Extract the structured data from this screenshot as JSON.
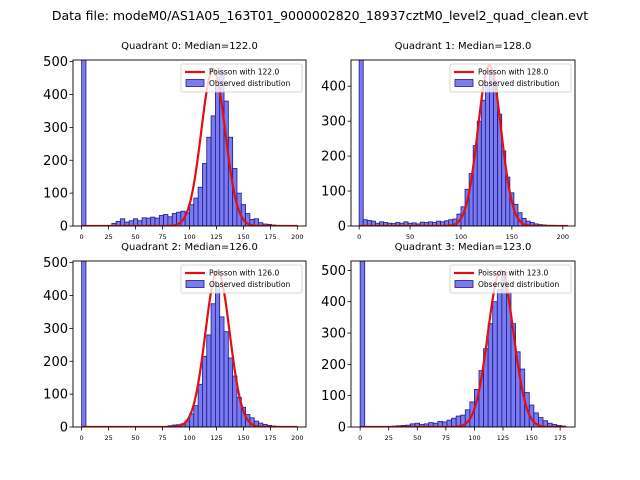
{
  "figure": {
    "suptitle": "Data file: modeM0/AS1A05_163T01_9000002820_18937cztM0_level2_quad_clean.evt"
  },
  "colors": {
    "bars_fill": "#7b7bef",
    "bars_edge": "#1a1a8c",
    "poisson_line": "#e01010"
  },
  "chart_data": [
    {
      "type": "bar",
      "title": "Quadrant 0: Median=122.0",
      "median": 122.0,
      "legend": [
        "Poisson with 122.0",
        "Observed distribution"
      ],
      "xlim": [
        -8,
        208
      ],
      "ylim": [
        0,
        505
      ],
      "xticks": [
        0,
        25,
        50,
        75,
        100,
        125,
        150,
        175,
        200
      ],
      "yticks": [
        0,
        100,
        200,
        300,
        400,
        500
      ],
      "bin_width": 4,
      "bins": [
        [
          0,
          505
        ],
        [
          28,
          8
        ],
        [
          32,
          14
        ],
        [
          36,
          22
        ],
        [
          40,
          12
        ],
        [
          44,
          16
        ],
        [
          48,
          22
        ],
        [
          52,
          16
        ],
        [
          56,
          25
        ],
        [
          60,
          24
        ],
        [
          64,
          27
        ],
        [
          68,
          24
        ],
        [
          72,
          32
        ],
        [
          76,
          35
        ],
        [
          80,
          28
        ],
        [
          84,
          38
        ],
        [
          88,
          42
        ],
        [
          92,
          45
        ],
        [
          96,
          40
        ],
        [
          100,
          65
        ],
        [
          104,
          85
        ],
        [
          108,
          118
        ],
        [
          112,
          190
        ],
        [
          116,
          270
        ],
        [
          120,
          335
        ],
        [
          124,
          425
        ],
        [
          128,
          470
        ],
        [
          132,
          380
        ],
        [
          136,
          270
        ],
        [
          140,
          175
        ],
        [
          144,
          100
        ],
        [
          148,
          65
        ],
        [
          152,
          38
        ],
        [
          156,
          20
        ],
        [
          160,
          22
        ],
        [
          164,
          10
        ],
        [
          168,
          6
        ],
        [
          172,
          5
        ],
        [
          176,
          3
        ],
        [
          180,
          2
        ],
        [
          184,
          1
        ],
        [
          188,
          1
        ],
        [
          192,
          1
        ],
        [
          196,
          1
        ]
      ],
      "poisson": {
        "mean": 122.0,
        "peak": 478,
        "range": [
          0,
          200
        ]
      }
    },
    {
      "type": "bar",
      "title": "Quadrant 1: Median=128.0",
      "median": 128.0,
      "legend": [
        "Poisson with 128.0",
        "Observed distribution"
      ],
      "xlim": [
        -8,
        212
      ],
      "ylim": [
        0,
        475
      ],
      "xticks": [
        0,
        50,
        100,
        150,
        200
      ],
      "yticks": [
        0,
        100,
        200,
        300,
        400
      ],
      "bin_width": 4,
      "bins": [
        [
          0,
          475
        ],
        [
          4,
          18
        ],
        [
          8,
          16
        ],
        [
          12,
          14
        ],
        [
          16,
          8
        ],
        [
          20,
          12
        ],
        [
          24,
          10
        ],
        [
          28,
          8
        ],
        [
          32,
          7
        ],
        [
          36,
          10
        ],
        [
          40,
          8
        ],
        [
          44,
          12
        ],
        [
          48,
          8
        ],
        [
          52,
          9
        ],
        [
          56,
          6
        ],
        [
          60,
          11
        ],
        [
          64,
          10
        ],
        [
          68,
          12
        ],
        [
          72,
          10
        ],
        [
          76,
          14
        ],
        [
          80,
          12
        ],
        [
          84,
          15
        ],
        [
          88,
          18
        ],
        [
          92,
          20
        ],
        [
          96,
          34
        ],
        [
          100,
          55
        ],
        [
          104,
          105
        ],
        [
          108,
          150
        ],
        [
          112,
          230
        ],
        [
          116,
          300
        ],
        [
          120,
          360
        ],
        [
          124,
          400
        ],
        [
          128,
          445
        ],
        [
          132,
          400
        ],
        [
          136,
          320
        ],
        [
          140,
          215
        ],
        [
          144,
          140
        ],
        [
          148,
          95
        ],
        [
          152,
          62
        ],
        [
          156,
          38
        ],
        [
          160,
          22
        ],
        [
          164,
          14
        ],
        [
          168,
          10
        ],
        [
          172,
          6
        ],
        [
          176,
          4
        ],
        [
          180,
          3
        ],
        [
          184,
          2
        ],
        [
          188,
          2
        ],
        [
          192,
          1
        ],
        [
          196,
          1
        ],
        [
          200,
          1
        ]
      ],
      "poisson": {
        "mean": 128.0,
        "peak": 460,
        "range": [
          0,
          205
        ]
      }
    },
    {
      "type": "bar",
      "title": "Quadrant 2: Median=126.0",
      "median": 126.0,
      "legend": [
        "Poisson with 126.0",
        "Observed distribution"
      ],
      "xlim": [
        -8,
        208
      ],
      "ylim": [
        0,
        505
      ],
      "xticks": [
        0,
        25,
        50,
        75,
        100,
        125,
        150,
        175,
        200
      ],
      "yticks": [
        0,
        100,
        200,
        300,
        400,
        500
      ],
      "bin_width": 4,
      "bins": [
        [
          0,
          505
        ],
        [
          80,
          4
        ],
        [
          84,
          6
        ],
        [
          88,
          7
        ],
        [
          92,
          10
        ],
        [
          96,
          18
        ],
        [
          100,
          40
        ],
        [
          104,
          65
        ],
        [
          108,
          130
        ],
        [
          112,
          215
        ],
        [
          116,
          280
        ],
        [
          120,
          375
        ],
        [
          124,
          430
        ],
        [
          128,
          335
        ],
        [
          132,
          290
        ],
        [
          136,
          210
        ],
        [
          140,
          155
        ],
        [
          144,
          90
        ],
        [
          148,
          60
        ],
        [
          152,
          38
        ],
        [
          156,
          28
        ],
        [
          160,
          18
        ],
        [
          164,
          12
        ],
        [
          168,
          8
        ],
        [
          172,
          5
        ],
        [
          176,
          3
        ],
        [
          180,
          2
        ]
      ],
      "poisson": {
        "mean": 126.0,
        "peak": 475,
        "range": [
          0,
          200
        ]
      }
    },
    {
      "type": "bar",
      "title": "Quadrant 3: Median=123.0",
      "median": 123.0,
      "legend": [
        "Poisson with 123.0",
        "Observed distribution"
      ],
      "xlim": [
        -8,
        188
      ],
      "ylim": [
        0,
        530
      ],
      "xticks": [
        0,
        25,
        50,
        75,
        100,
        125,
        150,
        175
      ],
      "yticks": [
        0,
        100,
        200,
        300,
        400,
        500
      ],
      "bin_width": 4,
      "bins": [
        [
          0,
          530
        ],
        [
          28,
          3
        ],
        [
          32,
          4
        ],
        [
          36,
          5
        ],
        [
          40,
          6
        ],
        [
          44,
          10
        ],
        [
          48,
          12
        ],
        [
          52,
          8
        ],
        [
          56,
          10
        ],
        [
          60,
          14
        ],
        [
          64,
          12
        ],
        [
          68,
          18
        ],
        [
          72,
          16
        ],
        [
          76,
          22
        ],
        [
          80,
          28
        ],
        [
          84,
          35
        ],
        [
          88,
          38
        ],
        [
          92,
          55
        ],
        [
          96,
          80
        ],
        [
          100,
          120
        ],
        [
          104,
          180
        ],
        [
          108,
          250
        ],
        [
          112,
          330
        ],
        [
          116,
          400
        ],
        [
          120,
          440
        ],
        [
          124,
          495
        ],
        [
          128,
          430
        ],
        [
          132,
          330
        ],
        [
          136,
          240
        ],
        [
          140,
          185
        ],
        [
          144,
          110
        ],
        [
          148,
          70
        ],
        [
          152,
          45
        ],
        [
          156,
          30
        ],
        [
          160,
          20
        ],
        [
          164,
          12
        ],
        [
          168,
          8
        ],
        [
          172,
          5
        ],
        [
          176,
          3
        ]
      ],
      "poisson": {
        "mean": 123.0,
        "peak": 500,
        "range": [
          0,
          180
        ]
      }
    }
  ]
}
